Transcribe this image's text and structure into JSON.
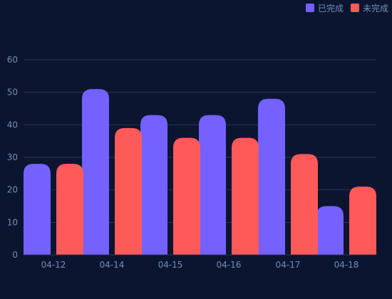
{
  "chart_data": {
    "type": "bar",
    "categories": [
      "04-12",
      "04-14",
      "04-15",
      "04-16",
      "04-17",
      "04-18"
    ],
    "series": [
      {
        "name": "已完成",
        "color": "#7461ff",
        "values": [
          28,
          51,
          43,
          43,
          48,
          15
        ]
      },
      {
        "name": "未完成",
        "color": "#ff5a5a",
        "values": [
          28,
          39,
          36,
          36,
          31,
          21
        ]
      }
    ],
    "ylim": [
      0,
      60
    ],
    "yticks": [
      0,
      10,
      20,
      30,
      40,
      50,
      60
    ],
    "grid": true,
    "legend_position": "top-right",
    "colors": {
      "background": "#0b1530",
      "gridline": "#2a3550",
      "axis_text": "#6f8fb6",
      "legend_text": "#6f8fb6"
    }
  }
}
